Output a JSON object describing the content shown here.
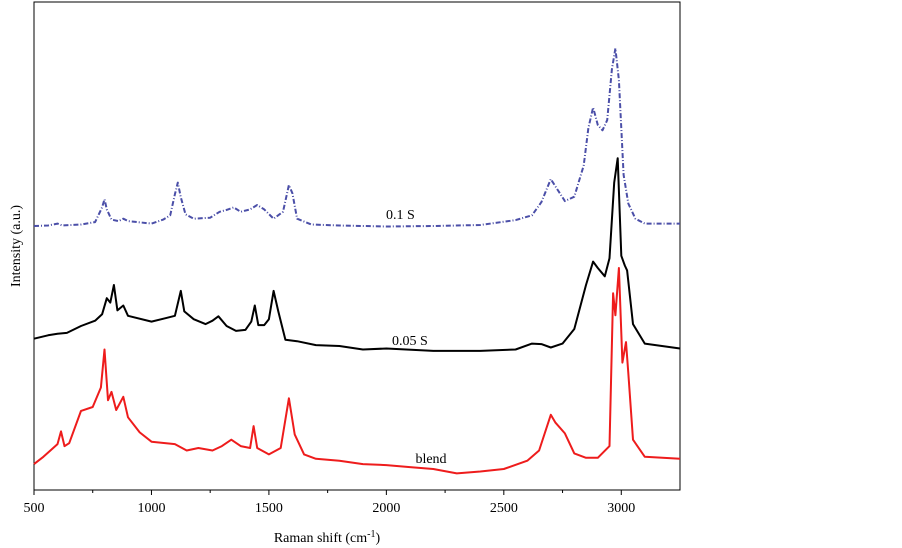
{
  "chart_data": {
    "type": "line",
    "xlabel": "Raman shift (cm",
    "xlabel_sup": "-1",
    "xlabel_close": ")",
    "ylabel": "Intensity (a.u.)",
    "xlim": [
      500,
      3250
    ],
    "ylim": [
      0,
      100
    ],
    "x_ticks": [
      500,
      1000,
      1500,
      2000,
      2500,
      3000
    ],
    "x_tick_labels": [
      "500",
      "1000",
      "1500",
      "2000",
      "2500",
      "3000"
    ],
    "y_ticks_shown": false,
    "grid": false,
    "legend": "none",
    "series": [
      {
        "name": "0.1 S",
        "color": "#4b4fa8",
        "style": "dash-dot",
        "label_at": [
          2060,
          55.5
        ],
        "points": [
          [
            500,
            54.1
          ],
          [
            560,
            54.2
          ],
          [
            600,
            54.6
          ],
          [
            620,
            54.2
          ],
          [
            700,
            54.4
          ],
          [
            760,
            54.9
          ],
          [
            790,
            57.9
          ],
          [
            800,
            59.6
          ],
          [
            810,
            57.5
          ],
          [
            830,
            55.4
          ],
          [
            860,
            55.1
          ],
          [
            880,
            55.6
          ],
          [
            900,
            55.1
          ],
          [
            1000,
            54.6
          ],
          [
            1050,
            55.4
          ],
          [
            1080,
            56.3
          ],
          [
            1100,
            60.6
          ],
          [
            1112,
            63.0
          ],
          [
            1125,
            60.0
          ],
          [
            1145,
            56.5
          ],
          [
            1180,
            55.6
          ],
          [
            1250,
            55.8
          ],
          [
            1290,
            57.0
          ],
          [
            1320,
            57.4
          ],
          [
            1350,
            57.9
          ],
          [
            1380,
            57.0
          ],
          [
            1420,
            57.5
          ],
          [
            1450,
            58.4
          ],
          [
            1480,
            57.5
          ],
          [
            1520,
            55.6
          ],
          [
            1560,
            57.0
          ],
          [
            1585,
            62.5
          ],
          [
            1600,
            60.8
          ],
          [
            1620,
            55.6
          ],
          [
            1680,
            54.4
          ],
          [
            1800,
            54.2
          ],
          [
            2000,
            54.0
          ],
          [
            2200,
            54.1
          ],
          [
            2400,
            54.3
          ],
          [
            2550,
            55.3
          ],
          [
            2620,
            56.3
          ],
          [
            2660,
            59.0
          ],
          [
            2700,
            63.7
          ],
          [
            2720,
            62.2
          ],
          [
            2760,
            59.2
          ],
          [
            2800,
            60.1
          ],
          [
            2840,
            66.5
          ],
          [
            2860,
            74.2
          ],
          [
            2880,
            78.4
          ],
          [
            2900,
            74.8
          ],
          [
            2920,
            73.7
          ],
          [
            2940,
            75.8
          ],
          [
            2960,
            86.2
          ],
          [
            2975,
            90.5
          ],
          [
            2990,
            84.0
          ],
          [
            3010,
            64.6
          ],
          [
            3030,
            58.7
          ],
          [
            3060,
            55.6
          ],
          [
            3100,
            54.6
          ],
          [
            3250,
            54.6
          ]
        ]
      },
      {
        "name": "0.05 S",
        "color": "#000000",
        "style": "solid",
        "label_at": [
          2100,
          29.7
        ],
        "points": [
          [
            500,
            31.0
          ],
          [
            560,
            31.7
          ],
          [
            600,
            32.0
          ],
          [
            640,
            32.2
          ],
          [
            700,
            33.6
          ],
          [
            760,
            34.7
          ],
          [
            790,
            36.0
          ],
          [
            810,
            39.3
          ],
          [
            825,
            38.4
          ],
          [
            840,
            42.0
          ],
          [
            855,
            36.8
          ],
          [
            880,
            37.8
          ],
          [
            900,
            35.7
          ],
          [
            1000,
            34.5
          ],
          [
            1060,
            35.2
          ],
          [
            1100,
            35.7
          ],
          [
            1125,
            40.8
          ],
          [
            1140,
            36.6
          ],
          [
            1180,
            35.0
          ],
          [
            1230,
            34.0
          ],
          [
            1260,
            34.7
          ],
          [
            1285,
            35.6
          ],
          [
            1320,
            33.6
          ],
          [
            1360,
            32.6
          ],
          [
            1400,
            32.8
          ],
          [
            1425,
            34.5
          ],
          [
            1440,
            37.8
          ],
          [
            1455,
            33.8
          ],
          [
            1480,
            33.8
          ],
          [
            1500,
            35.0
          ],
          [
            1520,
            40.8
          ],
          [
            1540,
            36.6
          ],
          [
            1570,
            30.8
          ],
          [
            1620,
            30.5
          ],
          [
            1700,
            29.7
          ],
          [
            1800,
            29.5
          ],
          [
            1900,
            28.8
          ],
          [
            2000,
            29.0
          ],
          [
            2200,
            28.5
          ],
          [
            2400,
            28.5
          ],
          [
            2550,
            28.8
          ],
          [
            2620,
            30.0
          ],
          [
            2660,
            29.9
          ],
          [
            2700,
            29.2
          ],
          [
            2750,
            30.0
          ],
          [
            2800,
            33.0
          ],
          [
            2850,
            42.0
          ],
          [
            2880,
            46.8
          ],
          [
            2900,
            45.5
          ],
          [
            2930,
            43.8
          ],
          [
            2950,
            47.5
          ],
          [
            2970,
            63.0
          ],
          [
            2985,
            68.0
          ],
          [
            3000,
            48.0
          ],
          [
            3015,
            46.0
          ],
          [
            3025,
            45.0
          ],
          [
            3050,
            34.0
          ],
          [
            3100,
            30.0
          ],
          [
            3250,
            29.0
          ]
        ]
      },
      {
        "name": "blend",
        "color": "#ee1c1c",
        "style": "solid",
        "label_at": [
          2190,
          5.5
        ],
        "points": [
          [
            500,
            5.3
          ],
          [
            540,
            6.8
          ],
          [
            570,
            8.1
          ],
          [
            600,
            9.4
          ],
          [
            615,
            12.0
          ],
          [
            630,
            9.0
          ],
          [
            650,
            9.6
          ],
          [
            700,
            16.2
          ],
          [
            750,
            17.0
          ],
          [
            785,
            21.0
          ],
          [
            800,
            28.8
          ],
          [
            815,
            18.4
          ],
          [
            830,
            20.1
          ],
          [
            850,
            16.4
          ],
          [
            880,
            19.1
          ],
          [
            900,
            14.9
          ],
          [
            950,
            11.8
          ],
          [
            1000,
            9.9
          ],
          [
            1100,
            9.4
          ],
          [
            1150,
            8.1
          ],
          [
            1200,
            8.6
          ],
          [
            1260,
            8.1
          ],
          [
            1300,
            9.0
          ],
          [
            1340,
            10.3
          ],
          [
            1380,
            9.0
          ],
          [
            1420,
            8.6
          ],
          [
            1435,
            13.1
          ],
          [
            1450,
            8.6
          ],
          [
            1500,
            7.3
          ],
          [
            1550,
            8.6
          ],
          [
            1585,
            18.8
          ],
          [
            1610,
            11.4
          ],
          [
            1650,
            7.3
          ],
          [
            1700,
            6.4
          ],
          [
            1800,
            6.0
          ],
          [
            1900,
            5.3
          ],
          [
            2000,
            5.1
          ],
          [
            2100,
            4.7
          ],
          [
            2200,
            4.3
          ],
          [
            2300,
            3.4
          ],
          [
            2400,
            3.8
          ],
          [
            2500,
            4.3
          ],
          [
            2600,
            6.0
          ],
          [
            2650,
            8.1
          ],
          [
            2700,
            15.4
          ],
          [
            2720,
            13.8
          ],
          [
            2760,
            11.6
          ],
          [
            2800,
            7.5
          ],
          [
            2850,
            6.6
          ],
          [
            2900,
            6.6
          ],
          [
            2950,
            9.0
          ],
          [
            2965,
            40.3
          ],
          [
            2975,
            35.8
          ],
          [
            2990,
            45.5
          ],
          [
            3005,
            26.1
          ],
          [
            3020,
            30.3
          ],
          [
            3030,
            24.0
          ],
          [
            3050,
            10.3
          ],
          [
            3100,
            6.8
          ],
          [
            3250,
            6.4
          ]
        ]
      }
    ]
  }
}
